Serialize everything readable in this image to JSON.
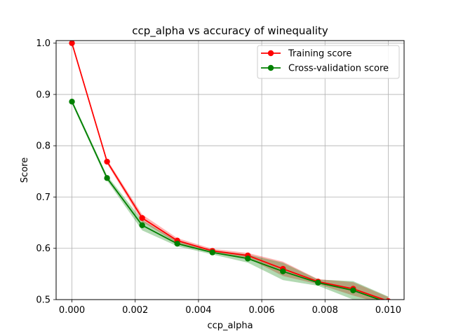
{
  "chart_data": {
    "type": "line",
    "title": "ccp_alpha vs accuracy of winequality",
    "xlabel": "ccp_alpha",
    "ylabel": "Score",
    "xlim": [
      -0.0005,
      0.0105
    ],
    "ylim": [
      0.5,
      1.005
    ],
    "xticks": [
      0.0,
      0.002,
      0.004,
      0.006,
      0.008,
      0.01
    ],
    "xtick_labels": [
      "0.000",
      "0.002",
      "0.004",
      "0.006",
      "0.008",
      "0.010"
    ],
    "yticks": [
      0.5,
      0.6,
      0.7,
      0.8,
      0.9,
      1.0
    ],
    "ytick_labels": [
      "0.5",
      "0.6",
      "0.7",
      "0.8",
      "0.9",
      "1.0"
    ],
    "grid": true,
    "legend_position": "top-right",
    "x": [
      0.0,
      0.00111,
      0.00222,
      0.00333,
      0.00444,
      0.00556,
      0.00667,
      0.00778,
      0.00889,
      0.01
    ],
    "series": [
      {
        "name": "Training score",
        "color": "#ff0000",
        "values": [
          1.0,
          0.769,
          0.659,
          0.615,
          0.595,
          0.586,
          0.56,
          0.535,
          0.521,
          0.497
        ],
        "band": [
          0.0,
          0.004,
          0.007,
          0.005,
          0.004,
          0.005,
          0.014,
          0.005,
          0.013,
          0.008
        ]
      },
      {
        "name": "Cross-validation score",
        "color": "#008000",
        "values": [
          0.886,
          0.737,
          0.645,
          0.609,
          0.592,
          0.58,
          0.555,
          0.533,
          0.518,
          0.494
        ],
        "band": [
          0.004,
          0.005,
          0.01,
          0.005,
          0.004,
          0.008,
          0.017,
          0.006,
          0.018,
          0.012
        ]
      }
    ]
  }
}
